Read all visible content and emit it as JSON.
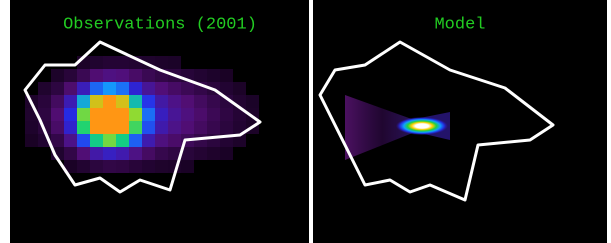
{
  "panels": [
    {
      "title": "Observations (2001)"
    },
    {
      "title": "Model"
    }
  ]
}
